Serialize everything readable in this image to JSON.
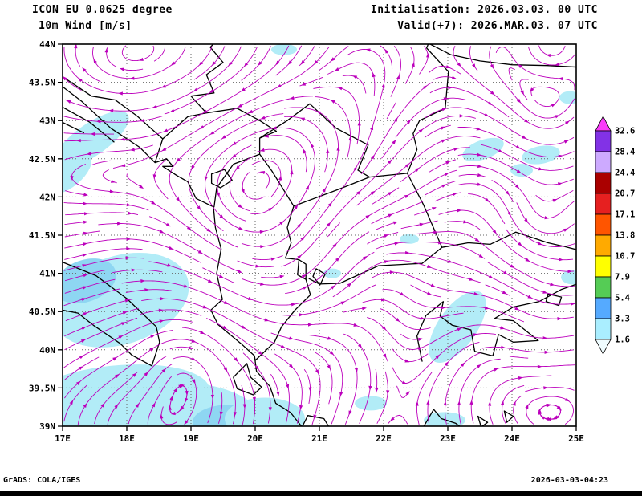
{
  "header": {
    "model_line": "ICON EU 0.0625 degree",
    "variable_line": "10m Wind [m/s]",
    "init_line": "Initialisation: 2026.03.03. 00 UTC",
    "valid_line": "Valid(+7): 2026.MAR.03. 07 UTC"
  },
  "footer": {
    "credit": "GrADS: COLA/IGES",
    "timestamp": "2026-03-03-04:23"
  },
  "axes": {
    "lon_tick_labels": [
      "17E",
      "18E",
      "19E",
      "20E",
      "21E",
      "22E",
      "23E",
      "24E",
      "25E"
    ],
    "lat_tick_labels": [
      "44N",
      "43.5N",
      "43N",
      "42.5N",
      "42N",
      "41.5N",
      "41N",
      "40.5N",
      "40N",
      "39.5N",
      "39N"
    ],
    "lon_range": [
      17,
      25
    ],
    "lat_range": [
      39,
      44
    ]
  },
  "colorbar": {
    "units": "m/s",
    "level_labels": [
      "32.6",
      "28.4",
      "24.4",
      "20.7",
      "17.1",
      "13.8",
      "10.7",
      "7.9",
      "5.4",
      "3.3",
      "1.6"
    ],
    "segment_colors_top_to_bottom": [
      "#fa3cfa",
      "#8232e6",
      "#cdaaff",
      "#aa0000",
      "#e62020",
      "#ff5500",
      "#ffaa00",
      "#ffff00",
      "#55cc55",
      "#55aaff",
      "#aaeeff",
      "#effcff"
    ]
  },
  "colors": {
    "streamline": "#bc00bc",
    "shading_light": "#b2ecf7",
    "shading_medium": "#8ed6f2",
    "coast": "#000000",
    "grid": "#666666",
    "frame": "#000000",
    "background": "#ffffff"
  }
}
